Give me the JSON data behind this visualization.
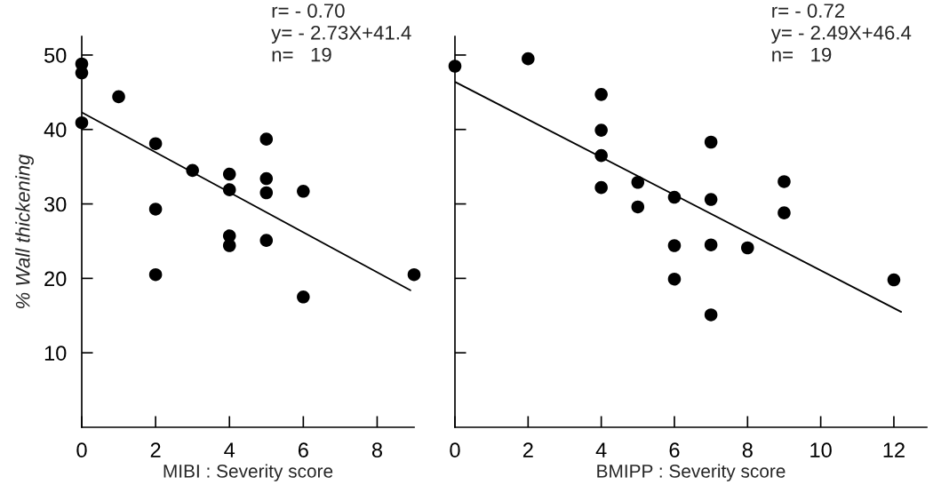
{
  "chart_data": [
    {
      "type": "scatter",
      "xlabel": "MIBI : Severity score",
      "ylabel": "% Wall thickening",
      "xlim": [
        0,
        9
      ],
      "ylim": [
        0,
        52.5
      ],
      "xticks": [
        0,
        2,
        4,
        6,
        8
      ],
      "yticks": [
        10,
        20,
        30,
        40,
        50
      ],
      "grid": false,
      "marker": "circle",
      "annotations": [
        "r= - 0.70",
        "y= - 2.73X+41.4",
        "n=   19"
      ],
      "series": [
        {
          "color": "#000000",
          "x": [
            0,
            0,
            0,
            1,
            2,
            2,
            2,
            3,
            4,
            4,
            4,
            4,
            5,
            5,
            5,
            5,
            6,
            6,
            9
          ],
          "values": [
            48.8,
            47.6,
            40.9,
            44.4,
            38.1,
            29.3,
            20.5,
            34.5,
            34,
            31.9,
            25.7,
            24.4,
            38.7,
            33.4,
            31.5,
            25.1,
            31.7,
            17.5,
            20.5
          ]
        },
        {
          "type": "line",
          "color": "#000000",
          "x": [
            0,
            8.9
          ],
          "values": [
            42.3,
            18.4
          ],
          "marker": "none",
          "line_style": "solid"
        }
      ]
    },
    {
      "type": "scatter",
      "xlabel": "BMIPP : Severity score",
      "xlim": [
        0,
        12.9
      ],
      "ylim": [
        0,
        52.5
      ],
      "xticks": [
        0,
        2,
        4,
        6,
        8,
        10,
        12
      ],
      "yticks": [
        {
          "value": 10,
          "label": null
        },
        {
          "value": 20,
          "label": null
        },
        {
          "value": 30,
          "label": null
        },
        {
          "value": 40,
          "label": null
        },
        {
          "value": 50,
          "label": null
        }
      ],
      "tick_labels": "x",
      "grid": false,
      "marker": "circle",
      "annotations": [
        "r= - 0.72",
        "y= - 2.49X+46.4",
        "n=   19"
      ],
      "series": [
        {
          "color": "#000000",
          "x": [
            0,
            2,
            4,
            4,
            4,
            4,
            5,
            5,
            6,
            6,
            6,
            7,
            7,
            7,
            7,
            8,
            9,
            9,
            12
          ],
          "values": [
            48.5,
            49.5,
            44.7,
            39.9,
            36.5,
            32.2,
            32.9,
            29.6,
            30.9,
            24.4,
            19.9,
            38.3,
            30.6,
            24.5,
            15.1,
            24.1,
            33.0,
            28.8,
            19.8
          ]
        },
        {
          "type": "line",
          "color": "#000000",
          "x": [
            0,
            12.2
          ],
          "values": [
            46.4,
            15.5
          ],
          "marker": "none",
          "line_style": "solid"
        }
      ]
    }
  ]
}
